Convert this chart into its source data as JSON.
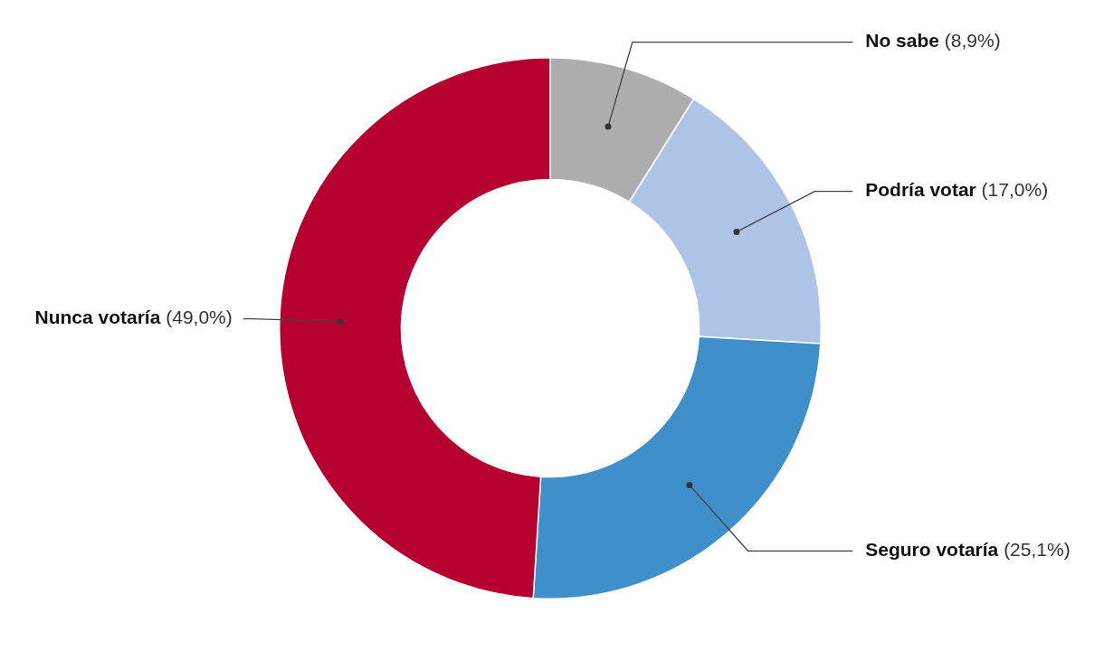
{
  "chart_data": {
    "type": "donut",
    "categories": [
      "No sabe",
      "Podría votar",
      "Seguro votaría",
      "Nunca votaría"
    ],
    "values": [
      8.9,
      17.0,
      25.1,
      49.0
    ],
    "colors": [
      "#adadad",
      "#adc4e6",
      "#3f8fca",
      "#b50030"
    ],
    "value_labels": [
      "(8,9%)",
      "(17,0%)",
      "(25,1%)",
      "(49,0%)"
    ]
  }
}
